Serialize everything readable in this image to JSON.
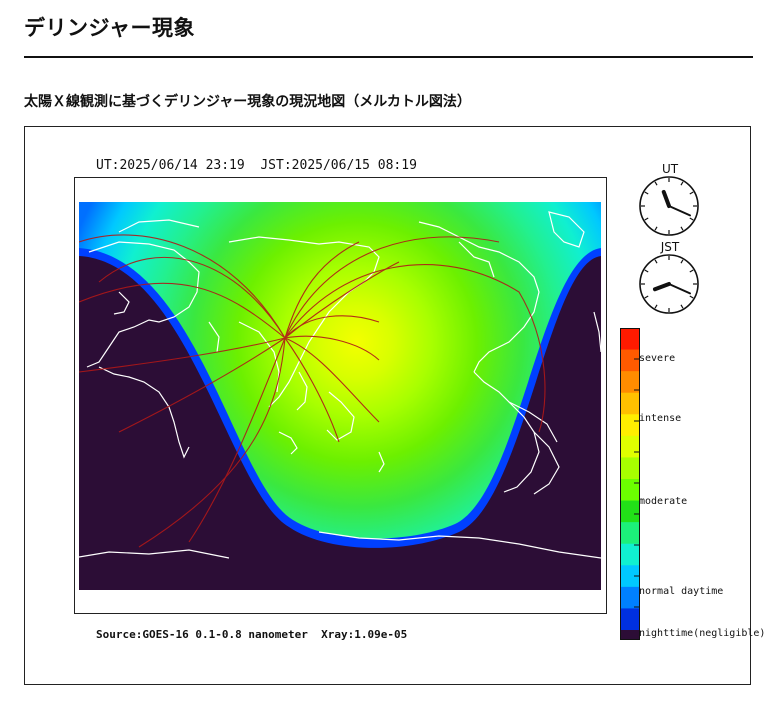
{
  "page": {
    "title": "デリンジャー現象",
    "section_title": "太陽Ｘ線観測に基づくデリンジャー現象の現況地図（メルカトル図法）"
  },
  "map": {
    "time_line": "UT:2025/06/14 23:19  JST:2025/06/15 08:19",
    "source_line": "Source:GOES-16 0.1-0.8 nanometer  Xray:1.09e-05",
    "projection": "mercator",
    "night_color": "#2c0d36",
    "coast_color": "#ffffff",
    "path_color": "#b01818"
  },
  "clocks": {
    "ut": {
      "label": "UT",
      "hour": 23,
      "minute": 19
    },
    "jst": {
      "label": "JST",
      "hour": 8,
      "minute": 19
    }
  },
  "legend": {
    "labels": {
      "severe": "severe",
      "intense": "intense",
      "moderate": "moderate",
      "normal": "normal daytime",
      "night": "nighttime(negligible)"
    },
    "colors_top_to_bottom": [
      "#ff1a00",
      "#ff5a00",
      "#ff8c00",
      "#ffc000",
      "#ffee00",
      "#e0ff00",
      "#a8ff00",
      "#6cff00",
      "#22e018",
      "#1cf07a",
      "#10f0d0",
      "#00c8ff",
      "#0080ff",
      "#0030e0",
      "#2c0d36"
    ]
  }
}
